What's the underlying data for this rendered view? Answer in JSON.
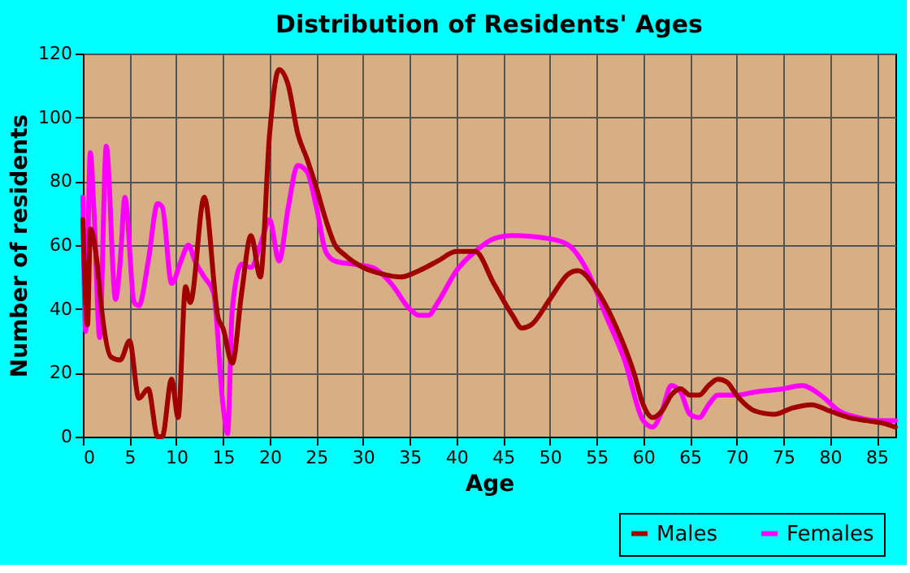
{
  "chart_data": {
    "type": "line",
    "title": "Distribution of Residents' Ages",
    "xlabel": "Age",
    "ylabel": "Number of residents",
    "xlim": [
      0,
      87
    ],
    "xticks": [
      0,
      5,
      10,
      15,
      20,
      25,
      30,
      35,
      40,
      45,
      50,
      55,
      60,
      65,
      70,
      75,
      80,
      85
    ],
    "ylim": [
      0,
      120
    ],
    "yticks": [
      0,
      20,
      40,
      60,
      80,
      100,
      120
    ],
    "grid": true,
    "legend": "bottom right",
    "series": [
      {
        "name": "Males",
        "color": "#a00000",
        "x": [
          0,
          0.5,
          0.8,
          1.5,
          2,
          3,
          4,
          5,
          6,
          7,
          8,
          8.5,
          9.5,
          10.2,
          11,
          11.5,
          13,
          14.5,
          15,
          16,
          17,
          18,
          19,
          20,
          21,
          22,
          23,
          24,
          25,
          26,
          27,
          28,
          30,
          32,
          34,
          36,
          38,
          40,
          42,
          44,
          46,
          47,
          48,
          50,
          52,
          53,
          55,
          57,
          59,
          60,
          61,
          62,
          63,
          64,
          65,
          66,
          67,
          68,
          69,
          70,
          72,
          74,
          76,
          78,
          80,
          82,
          84,
          86,
          87
        ],
        "values": [
          68,
          35,
          65,
          55,
          40,
          25,
          24,
          30,
          12,
          15,
          0,
          0,
          18,
          6,
          47,
          42,
          75,
          37,
          34,
          23,
          45,
          63,
          50,
          95,
          115,
          110,
          95,
          87,
          78,
          68,
          60,
          57,
          53,
          51,
          50,
          52,
          55,
          58,
          58,
          48,
          38,
          34,
          35,
          43,
          51,
          52,
          46,
          35,
          20,
          10,
          6,
          8,
          13,
          15,
          13,
          13,
          16,
          18,
          17,
          13,
          8,
          7,
          9,
          10,
          8,
          6,
          5,
          4,
          3
        ]
      },
      {
        "name": "Females",
        "color": "#ff00ff",
        "x": [
          0,
          0.3,
          0.8,
          1.2,
          1.8,
          2.5,
          3.5,
          4,
          4.5,
          5.5,
          6,
          7,
          8,
          8.5,
          9.5,
          10.5,
          11.3,
          12,
          13,
          14,
          15,
          15.5,
          16,
          17,
          18,
          19,
          20,
          21,
          22,
          23,
          24,
          25,
          26,
          27,
          29,
          31,
          33,
          35,
          36,
          37,
          38,
          40,
          42,
          44,
          46,
          50,
          52,
          54,
          56,
          58,
          60,
          61,
          62,
          63,
          64,
          65,
          66,
          67,
          68,
          70,
          72,
          75,
          77,
          79,
          81,
          83,
          85,
          87
        ],
        "values": [
          75,
          33,
          89,
          70,
          31,
          91,
          43,
          55,
          75,
          42,
          41,
          55,
          73,
          72,
          48,
          55,
          60,
          55,
          50,
          45,
          10,
          1,
          40,
          54,
          53,
          60,
          68,
          55,
          72,
          85,
          83,
          72,
          58,
          55,
          54,
          53,
          48,
          40,
          38,
          38,
          42,
          52,
          58,
          62,
          63,
          62,
          60,
          52,
          38,
          24,
          5,
          3,
          8,
          16,
          14,
          7,
          6,
          10,
          13,
          13,
          14,
          15,
          16,
          13,
          8,
          6,
          5,
          5
        ]
      }
    ]
  }
}
